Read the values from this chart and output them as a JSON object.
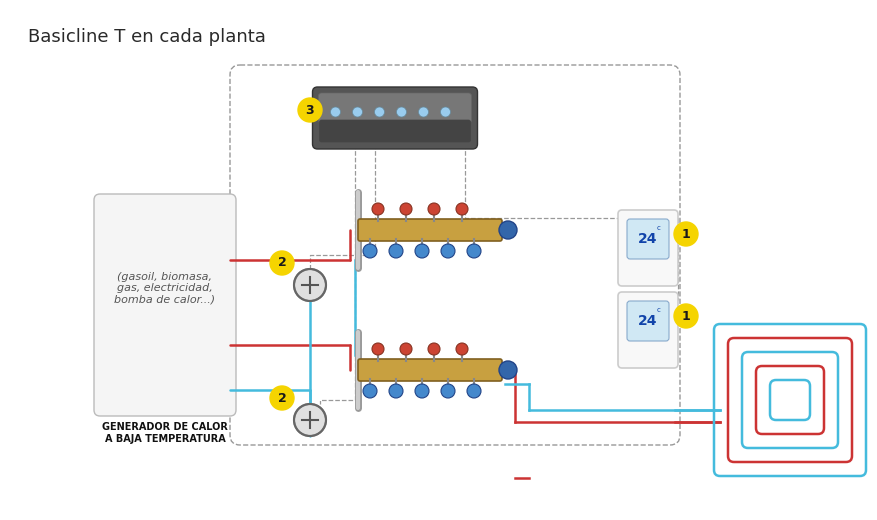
{
  "title": "Basicline T en cada planta",
  "title_fontsize": 13,
  "bg_color": "#ffffff",
  "text_color": "#2a2a2a",
  "red_line_color": "#cc3333",
  "blue_line_color": "#44bbdd",
  "dashed_color": "#999999",
  "yellow_circle_color": "#f5d400",
  "generator_label1": "GENERADOR DE CALOR",
  "generator_label2": "A BAJA TEMPERATURA",
  "generator_text": "(gasoil, biomasa,\ngas, electricidad,\nbomba de calor...)"
}
